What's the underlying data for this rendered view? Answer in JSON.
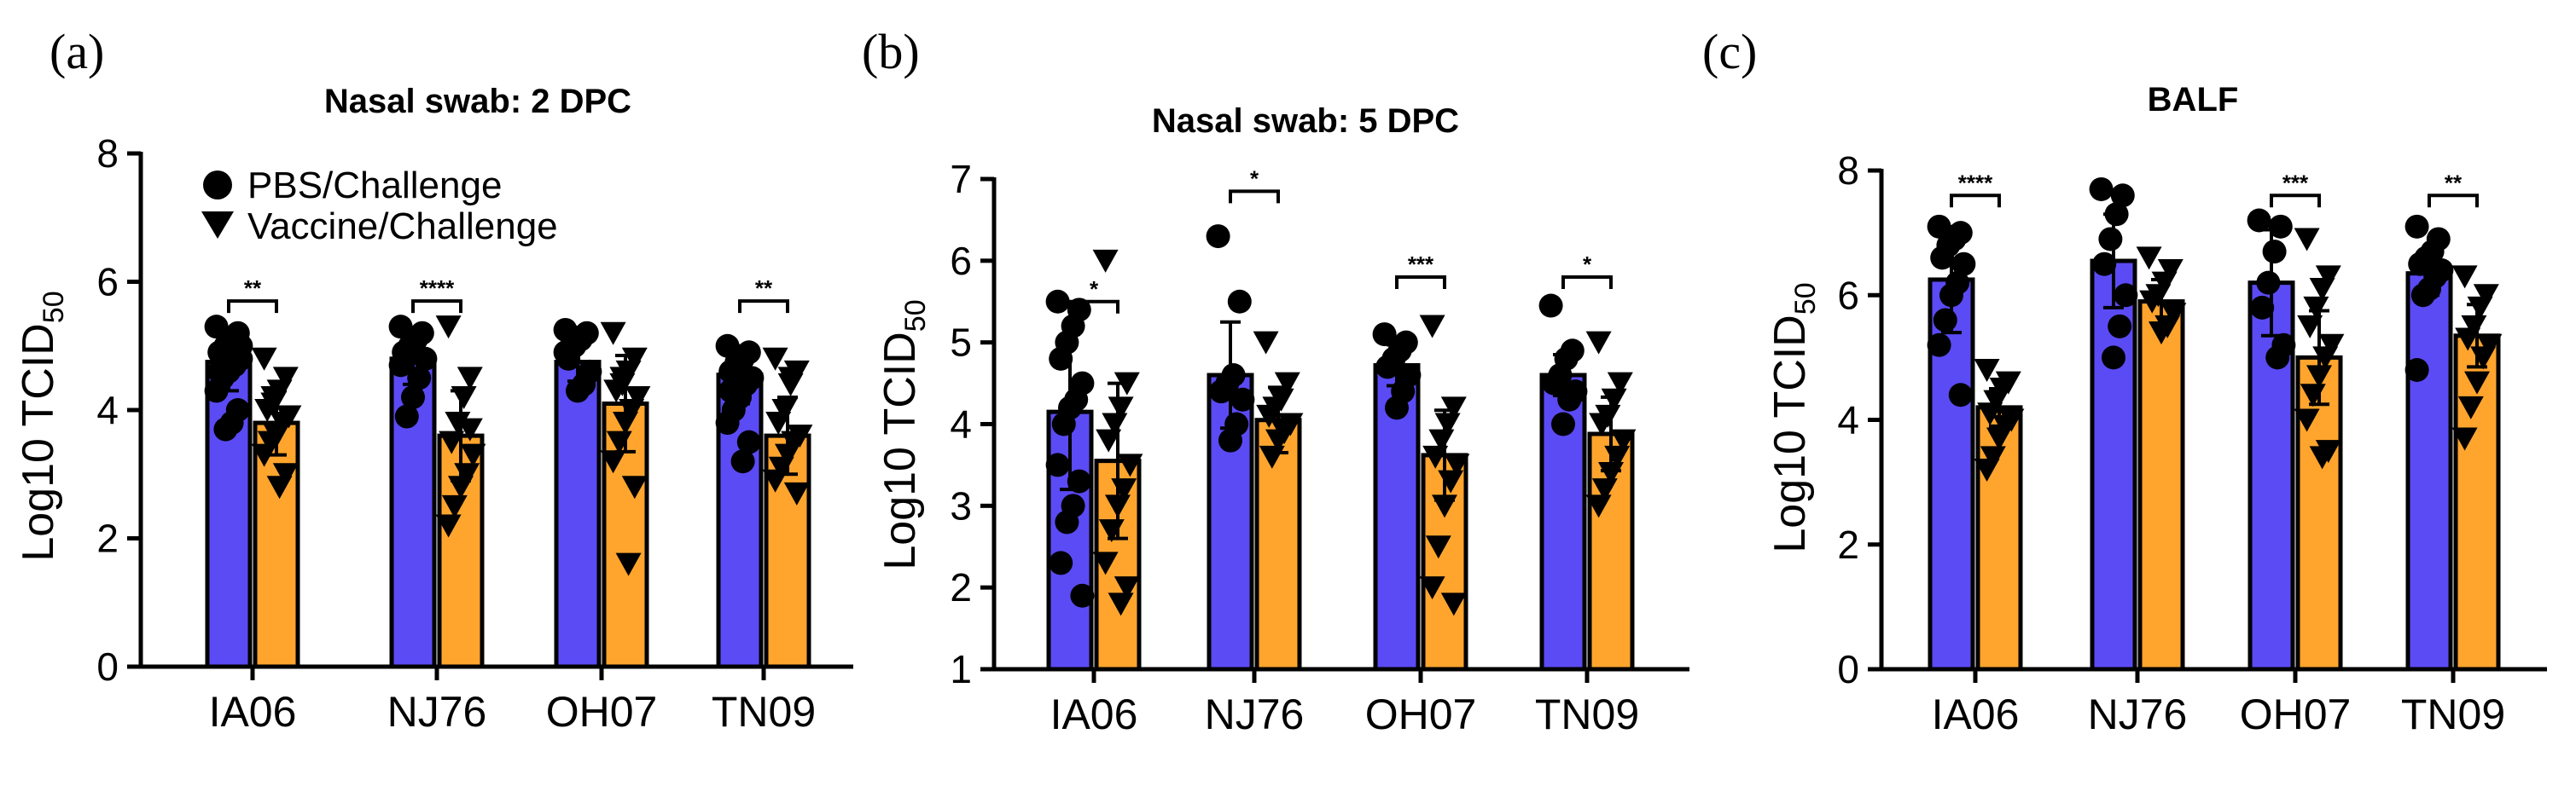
{
  "colors": {
    "pbs": "#5B4BF5",
    "vaccine": "#FFA52E",
    "stroke": "#000000"
  },
  "legend": {
    "pbs_label": "PBS/Challenge",
    "vaccine_label": "Vaccine/Challenge"
  },
  "chart_data": [
    {
      "panel": "(a)",
      "type": "bar",
      "title": "Nasal swab: 2 DPC",
      "ylabel": "Log10 TCID",
      "ylabel_sub": "50",
      "ylim": [
        0,
        8
      ],
      "yticks": [
        0,
        2,
        4,
        6,
        8
      ],
      "categories": [
        "IA06",
        "NJ76",
        "OH07",
        "TN09"
      ],
      "series": [
        {
          "name": "PBS/Challenge",
          "values": [
            4.75,
            4.8,
            4.75,
            4.55
          ],
          "err": [
            0.45,
            0.4,
            0.3,
            0.45
          ],
          "points": [
            [
              5.3,
              5.2,
              5.1,
              5.0,
              4.9,
              4.8,
              4.7,
              4.6,
              4.5,
              4.3,
              4.0,
              3.8,
              3.7,
              4.6,
              5.0
            ],
            [
              5.3,
              5.2,
              5.1,
              5.0,
              4.9,
              4.8,
              4.5,
              4.2,
              3.9,
              4.7
            ],
            [
              5.25,
              5.2,
              5.1,
              5.0,
              4.8,
              4.6,
              4.4,
              4.3,
              5.15,
              4.9
            ],
            [
              5.0,
              4.9,
              4.8,
              4.7,
              4.6,
              4.5,
              4.4,
              4.2,
              4.0,
              3.8,
              3.5,
              3.2,
              4.75,
              4.3
            ]
          ]
        },
        {
          "name": "Vaccine/Challenge",
          "values": [
            3.8,
            3.6,
            4.1,
            3.6
          ],
          "err": [
            0.5,
            0.7,
            0.75,
            0.6
          ],
          "points": [
            [
              4.8,
              4.5,
              4.3,
              4.2,
              4.0,
              3.9,
              3.8,
              3.6,
              3.5,
              3.3,
              3.0,
              2.8,
              4.1
            ],
            [
              5.3,
              4.5,
              4.2,
              3.8,
              3.5,
              3.3,
              3.0,
              2.8,
              2.5,
              2.2,
              3.7
            ],
            [
              5.2,
              4.8,
              4.6,
              4.5,
              4.3,
              4.2,
              4.0,
              3.8,
              3.5,
              3.2,
              2.8,
              1.6,
              4.4
            ],
            [
              4.8,
              4.6,
              4.4,
              4.0,
              3.8,
              3.6,
              3.5,
              3.3,
              3.1,
              2.9,
              2.7,
              4.5
            ]
          ]
        }
      ],
      "significance": [
        {
          "category": "IA06",
          "label": "**",
          "y": 5.7
        },
        {
          "category": "NJ76",
          "label": "****",
          "y": 5.7
        },
        {
          "category": "TN09",
          "label": "**",
          "y": 5.7
        }
      ]
    },
    {
      "panel": "(b)",
      "type": "bar",
      "title": "Nasal swab: 5 DPC",
      "ylabel": "Log10 TCID",
      "ylabel_sub": "50",
      "ylim": [
        1,
        7
      ],
      "yticks": [
        1,
        2,
        3,
        4,
        5,
        6,
        7
      ],
      "categories": [
        "IA06",
        "NJ76",
        "OH07",
        "TN09"
      ],
      "series": [
        {
          "name": "PBS/Challenge",
          "values": [
            4.15,
            4.6,
            4.72,
            4.6
          ],
          "err": [
            0.95,
            0.65,
            0.25,
            0.25
          ],
          "points": [
            [
              5.5,
              5.4,
              5.2,
              5.0,
              4.8,
              4.5,
              4.3,
              4.2,
              4.0,
              3.5,
              3.3,
              3.0,
              2.8,
              2.3,
              1.9
            ],
            [
              6.3,
              5.5,
              4.6,
              4.5,
              4.4,
              4.3,
              4.0,
              3.8
            ],
            [
              5.1,
              5.0,
              4.9,
              4.8,
              4.7,
              4.6,
              4.4,
              4.2
            ],
            [
              5.45,
              4.9,
              4.8,
              4.6,
              4.5,
              4.4,
              4.3,
              4.0
            ]
          ]
        },
        {
          "name": "Vaccine/Challenge",
          "values": [
            3.55,
            4.05,
            3.62,
            3.88
          ],
          "err": [
            0.95,
            0.4,
            0.55,
            0.45
          ],
          "points": [
            [
              6.0,
              4.5,
              4.2,
              4.0,
              3.8,
              3.5,
              3.2,
              3.0,
              2.7,
              2.3,
              2.0,
              1.8
            ],
            [
              5.0,
              4.5,
              4.3,
              4.2,
              4.1,
              4.0,
              3.9,
              3.8,
              3.6
            ],
            [
              5.2,
              4.2,
              4.0,
              3.8,
              3.6,
              3.5,
              3.3,
              3.0,
              2.5,
              2.0,
              1.8
            ],
            [
              5.0,
              4.5,
              4.3,
              4.1,
              4.0,
              3.8,
              3.6,
              3.4,
              3.2,
              3.0
            ]
          ]
        }
      ],
      "significance": [
        {
          "category": "IA06",
          "label": "*",
          "y": 5.5
        },
        {
          "category": "NJ76",
          "label": "*",
          "y": 6.85
        },
        {
          "category": "OH07",
          "label": "***",
          "y": 5.8
        },
        {
          "category": "TN09",
          "label": "*",
          "y": 5.8
        }
      ]
    },
    {
      "panel": "(c)",
      "type": "bar",
      "title": "BALF",
      "ylabel": "Log10 TCID",
      "ylabel_sub": "50",
      "ylim": [
        0,
        8
      ],
      "yticks": [
        0,
        2,
        4,
        6,
        8
      ],
      "categories": [
        "IA06",
        "NJ76",
        "OH07",
        "TN09"
      ],
      "series": [
        {
          "name": "PBS/Challenge",
          "values": [
            6.25,
            6.55,
            6.2,
            6.35
          ],
          "err": [
            0.85,
            0.75,
            0.85,
            0.35
          ],
          "points": [
            [
              7.1,
              7.0,
              6.9,
              6.8,
              6.6,
              6.5,
              6.2,
              6.0,
              5.6,
              5.2,
              4.4
            ],
            [
              7.7,
              7.6,
              7.3,
              6.9,
              6.5,
              6.0,
              5.5,
              5.0
            ],
            [
              7.2,
              7.1,
              6.7,
              6.2,
              5.8,
              5.2,
              5.0
            ],
            [
              7.1,
              6.9,
              6.7,
              6.6,
              6.5,
              6.4,
              6.3,
              6.1,
              6.0,
              4.8
            ]
          ]
        },
        {
          "name": "Vaccine/Challenge",
          "values": [
            4.2,
            5.9,
            5.0,
            5.35
          ],
          "err": [
            0.3,
            0.35,
            0.75,
            0.5
          ],
          "points": [
            [
              4.8,
              4.6,
              4.5,
              4.3,
              4.1,
              4.0,
              3.9,
              3.7,
              3.4,
              3.2
            ],
            [
              6.6,
              6.4,
              6.2,
              6.0,
              5.9,
              5.7,
              5.5,
              5.4
            ],
            [
              6.9,
              6.3,
              6.1,
              5.8,
              5.5,
              5.2,
              5.0,
              4.7,
              4.4,
              4.0,
              3.5,
              3.4
            ],
            [
              6.3,
              6.0,
              5.8,
              5.5,
              5.3,
              5.2,
              5.0,
              4.6,
              4.2,
              3.7
            ]
          ]
        }
      ],
      "significance": [
        {
          "category": "IA06",
          "label": "****",
          "y": 7.6
        },
        {
          "category": "OH07",
          "label": "***",
          "y": 7.6
        },
        {
          "category": "TN09",
          "label": "**",
          "y": 7.6
        }
      ]
    }
  ]
}
